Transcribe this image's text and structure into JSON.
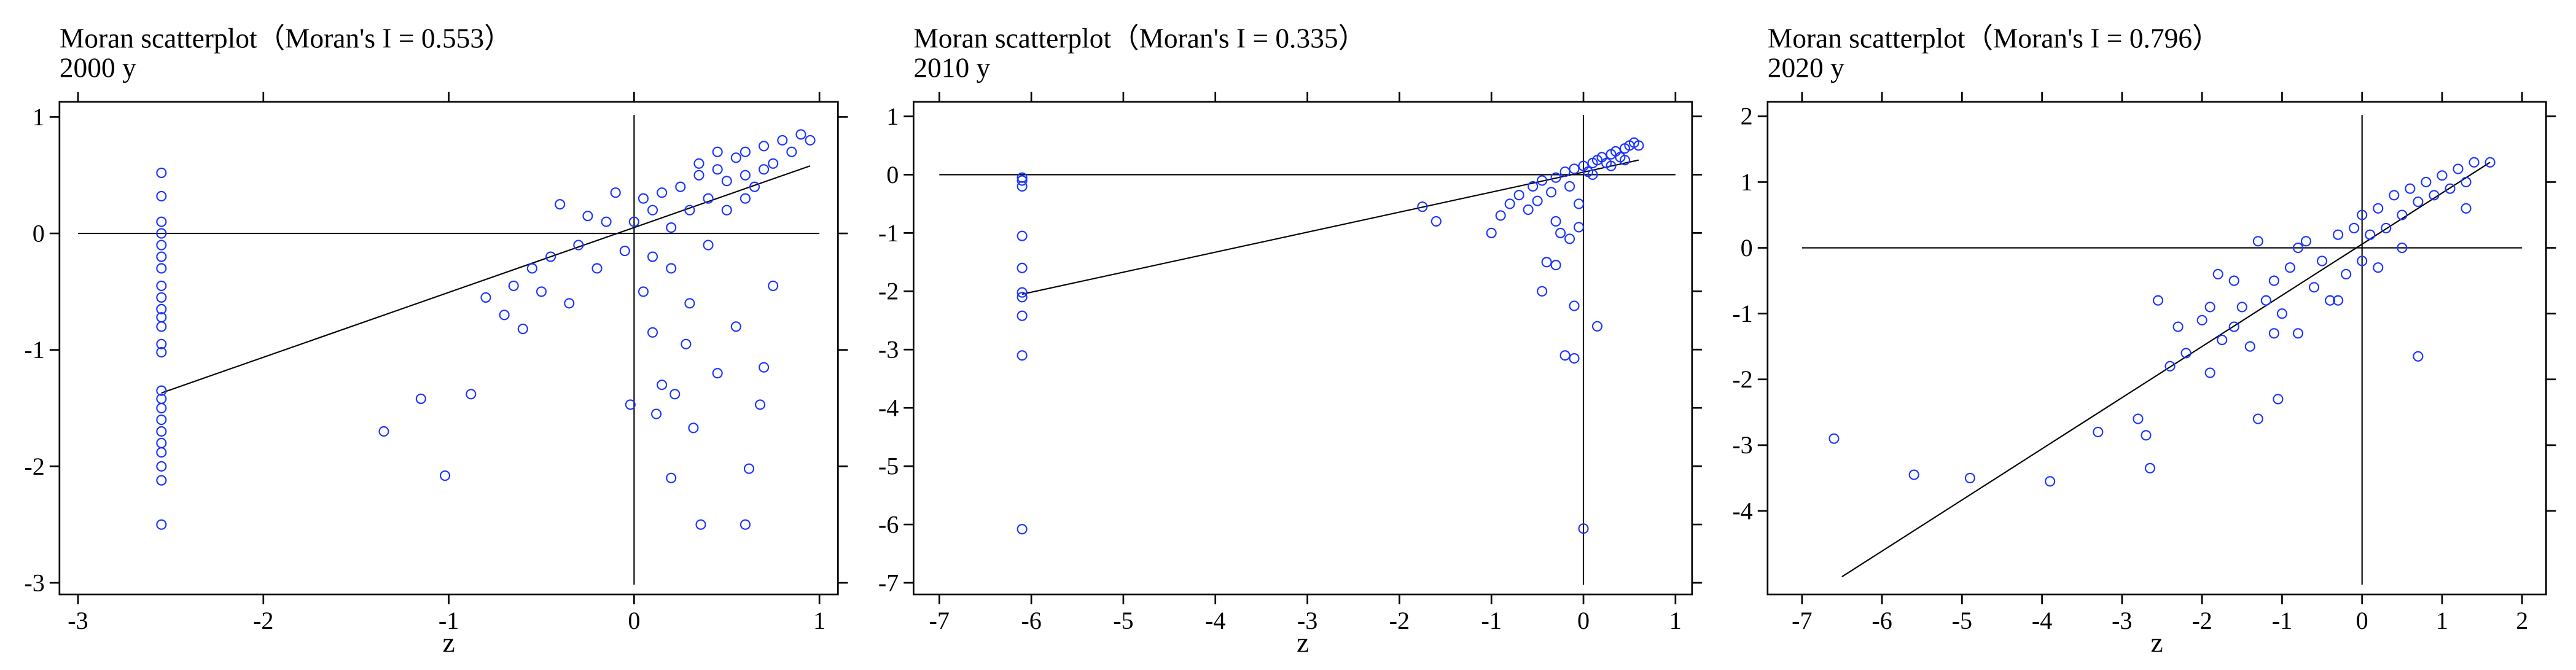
{
  "chart_data": [
    {
      "type": "scatter",
      "title": "Moran scatterplot（Moran's I = 0.553）",
      "subtitle": "2000 y",
      "xlabel": "z",
      "color": "#1a35ff",
      "xlim": [
        -3.1,
        1.1
      ],
      "ylim": [
        -3.1,
        1.13
      ],
      "xticks": [
        -3,
        -2,
        -1,
        0,
        1
      ],
      "yticks": [
        1,
        0,
        -1,
        -2,
        -3
      ],
      "x": [
        -2.55,
        -2.55,
        -2.55,
        -2.55,
        -2.55,
        -2.55,
        -2.55,
        -2.55,
        -2.55,
        -2.55,
        -2.55,
        -2.55,
        -2.55,
        -2.55,
        -2.55,
        -2.55,
        -2.55,
        -2.55,
        -2.55,
        -2.55,
        -2.55,
        -2.55,
        -2.55,
        -2.55,
        -1.35,
        -1.15,
        -1.02,
        -0.88,
        -0.8,
        -0.7,
        -0.65,
        -0.6,
        -0.55,
        -0.5,
        -0.45,
        -0.4,
        -0.35,
        -0.3,
        -0.25,
        -0.2,
        -0.15,
        -0.1,
        -0.05,
        0,
        0.05,
        0.05,
        0.1,
        0.1,
        0.15,
        0.2,
        0.2,
        0.25,
        0.3,
        0.3,
        0.35,
        0.4,
        0.4,
        0.45,
        0.5,
        0.5,
        0.55,
        0.6,
        0.6,
        0.65,
        0.7,
        0.75,
        0.8,
        0.85,
        0.9,
        0.95,
        0.6,
        0.7,
        0.45,
        0.35,
        -0.02,
        0.15,
        0.2,
        0.22,
        0.32,
        0.36,
        0.45,
        0.6,
        0.62,
        0.68,
        0.7,
        0.75,
        0.55,
        0.28,
        0.1,
        0.12
      ],
      "values": [
        0.52,
        0.32,
        0.1,
        0,
        -0.1,
        -0.2,
        -0.3,
        -0.45,
        -0.55,
        -0.65,
        -0.72,
        -0.8,
        -0.95,
        -1.02,
        -1.35,
        -1.42,
        -1.5,
        -1.6,
        -1.7,
        -1.8,
        -1.88,
        -2.0,
        -2.12,
        -2.5,
        -1.7,
        -1.42,
        -2.08,
        -1.38,
        -0.55,
        -0.7,
        -0.45,
        -0.82,
        -0.3,
        -0.5,
        -0.2,
        0.25,
        -0.6,
        -0.1,
        0.15,
        -0.3,
        0.1,
        0.35,
        -0.15,
        0.1,
        -0.5,
        0.3,
        -0.2,
        0.2,
        0.35,
        0.05,
        -0.3,
        0.4,
        0.2,
        -0.6,
        0.5,
        0.3,
        -0.1,
        0.55,
        0.45,
        0.2,
        0.65,
        0.5,
        0.7,
        0.4,
        0.75,
        0.6,
        0.8,
        0.7,
        0.85,
        0.8,
        0.3,
        0.55,
        0.7,
        0.6,
        -1.47,
        -1.3,
        -2.1,
        -1.38,
        -1.67,
        -2.5,
        -1.2,
        -2.5,
        -2.02,
        -1.47,
        -1.15,
        -0.45,
        -0.8,
        -0.95,
        -0.85,
        -1.55
      ],
      "fit_line": {
        "x": [
          -2.55,
          0.95
        ],
        "y": [
          -1.37,
          0.58
        ]
      }
    },
    {
      "type": "scatter",
      "title": "Moran scatterplot（Moran's I = 0.335）",
      "subtitle": "2010 y",
      "xlabel": "z",
      "color": "#1a35ff",
      "xlim": [
        -7.28,
        1.18
      ],
      "ylim": [
        -7.2,
        1.25
      ],
      "xticks": [
        -7,
        -6,
        -5,
        -4,
        -3,
        -2,
        -1,
        0,
        1
      ],
      "yticks": [
        1,
        0,
        -1,
        -2,
        -3,
        -4,
        -5,
        -6,
        -7
      ],
      "x": [
        -6.1,
        -6.1,
        -6.1,
        -6.1,
        -6.1,
        -6.1,
        -6.1,
        -6.1,
        -6.1,
        -6.1,
        -1.75,
        -1.6,
        -1.0,
        -0.9,
        -0.8,
        -0.7,
        -0.6,
        -0.55,
        -0.5,
        -0.45,
        -0.4,
        -0.35,
        -0.3,
        -0.25,
        -0.2,
        -0.2,
        -0.15,
        -0.1,
        -0.1,
        -0.1,
        -0.05,
        0,
        0,
        0.05,
        0.1,
        0.15,
        0.15,
        0.2,
        0.25,
        0.3,
        0.35,
        0.4,
        0.45,
        0.5,
        0.55,
        0.6,
        -0.15,
        -0.05,
        -0.3,
        0.1,
        0.3,
        0.45,
        -0.45,
        -0.3
      ],
      "values": [
        -0.05,
        -0.1,
        -0.2,
        -1.05,
        -1.6,
        -2.02,
        -2.1,
        -2.42,
        -3.1,
        -6.08,
        -0.55,
        -0.8,
        -1.0,
        -0.7,
        -0.5,
        -0.35,
        -0.6,
        -0.2,
        -0.45,
        -0.1,
        -1.5,
        -0.3,
        -0.05,
        -1.0,
        0.05,
        -3.1,
        -0.2,
        0.1,
        -2.25,
        -3.15,
        -0.5,
        0.15,
        -6.07,
        0.05,
        0.2,
        -2.6,
        0.25,
        0.3,
        0.2,
        0.35,
        0.4,
        0.3,
        0.45,
        0.5,
        0.55,
        0.5,
        -1.1,
        -0.9,
        -0.8,
        0,
        0.15,
        0.25,
        -2.0,
        -1.55
      ],
      "fit_line": {
        "x": [
          -6.1,
          0.6
        ],
        "y": [
          -2.05,
          0.25
        ]
      }
    },
    {
      "type": "scatter",
      "title": "Moran scatterplot（Moran's I = 0.796）",
      "subtitle": "2020 y",
      "xlabel": "z",
      "color": "#1a35ff",
      "xlim": [
        -7.43,
        2.3
      ],
      "ylim": [
        -5.27,
        2.22
      ],
      "xticks": [
        -7,
        -6,
        -5,
        -4,
        -3,
        -2,
        -1,
        0,
        1,
        2
      ],
      "yticks": [
        2,
        1,
        0,
        -1,
        -2,
        -3,
        -4
      ],
      "x": [
        -6.6,
        -5.6,
        -4.9,
        -3.9,
        -3.3,
        -2.8,
        -2.7,
        -2.65,
        -2.55,
        -2.4,
        -2.2,
        -2.0,
        -1.9,
        -1.8,
        -1.75,
        -1.6,
        -1.5,
        -1.4,
        -1.3,
        -1.2,
        -1.1,
        -1.05,
        -1.0,
        -0.9,
        -0.8,
        -0.7,
        -0.6,
        -0.5,
        -0.4,
        -0.3,
        -0.2,
        -0.1,
        0,
        0,
        0.1,
        0.2,
        0.3,
        0.4,
        0.5,
        0.6,
        0.7,
        0.7,
        0.8,
        0.9,
        1.0,
        1.1,
        1.2,
        1.3,
        1.4,
        1.6,
        -1.3,
        -1.1,
        -0.3,
        0.5,
        0.2,
        -1.9,
        -1.6,
        -2.3,
        -0.8,
        1.3
      ],
      "values": [
        -2.9,
        -3.45,
        -3.5,
        -3.55,
        -2.8,
        -2.6,
        -2.85,
        -3.35,
        -0.8,
        -1.8,
        -1.6,
        -1.1,
        -1.9,
        -0.4,
        -1.4,
        -1.2,
        -0.9,
        -1.5,
        -2.6,
        -0.8,
        -0.5,
        -2.3,
        -1.0,
        -0.3,
        -1.3,
        0.1,
        -0.6,
        -0.2,
        -0.8,
        0.2,
        -0.4,
        0.3,
        -0.2,
        0.5,
        0.2,
        0.6,
        0.3,
        0.8,
        0.5,
        0.9,
        0.7,
        -1.65,
        1.0,
        0.8,
        1.1,
        0.9,
        1.2,
        1.0,
        1.3,
        1.3,
        0.1,
        -1.3,
        -0.8,
        0.0,
        -0.3,
        -0.9,
        -0.5,
        -1.2,
        0.0,
        0.6
      ],
      "fit_line": {
        "x": [
          -6.5,
          1.6
        ],
        "y": [
          -5.0,
          1.3
        ]
      }
    }
  ]
}
